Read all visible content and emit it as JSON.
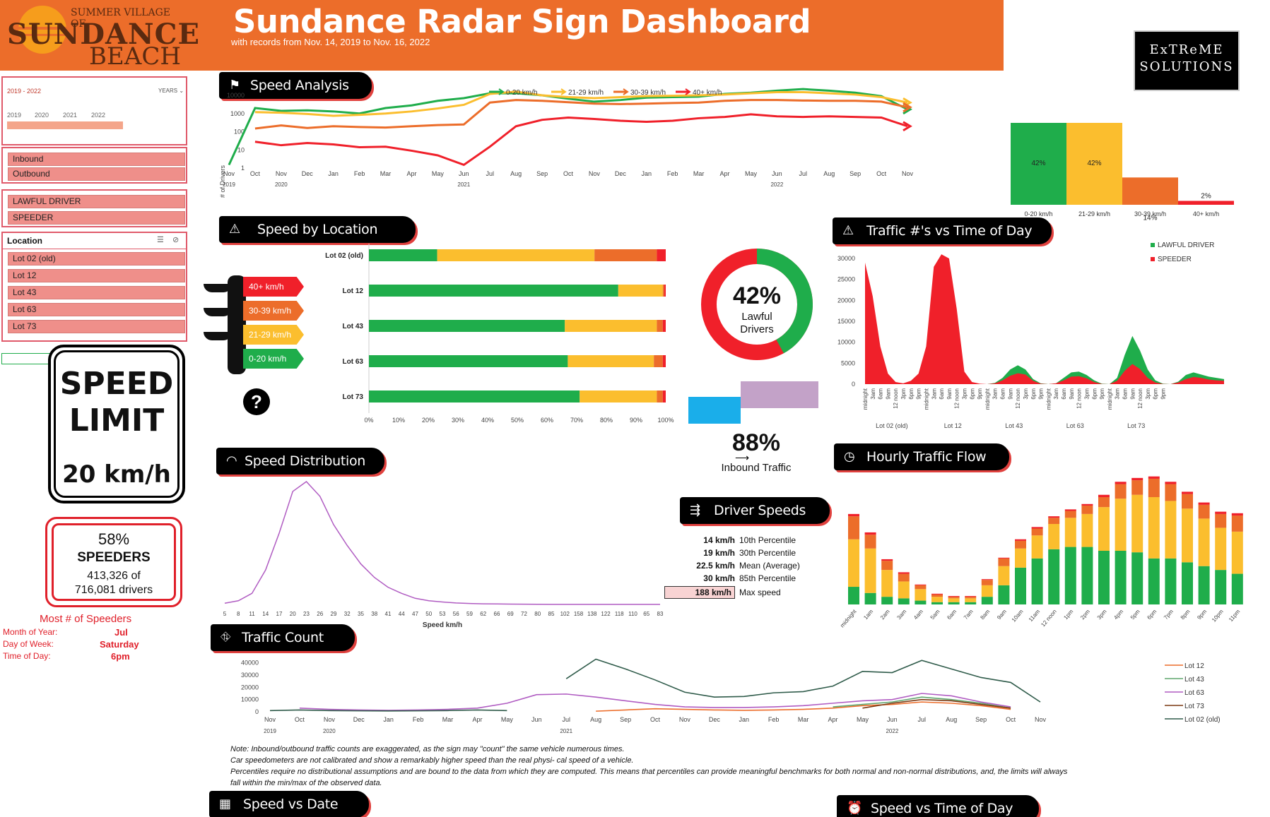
{
  "header": {
    "logo_top": "SUMMER VILLAGE OF",
    "logo_main": "SUNDANCE",
    "logo_sub": "BEACH",
    "title": "Sundance Radar Sign Dashboard",
    "subtitle": "with records from Nov. 14, 2019 to Nov. 16, 2022",
    "brand_line1": "ExTReME",
    "brand_line2": "SOLUTIONS",
    "brand_bg": "#000000"
  },
  "colors": {
    "green": "#1fad4b",
    "yellow": "#fbbe2e",
    "orange": "#ec6d2a",
    "red": "#f0202a",
    "purple": "#b05cc2",
    "accent": "#e0413e"
  },
  "timeline": {
    "range_label": "2019 - 2022",
    "unit_label": "YEARS",
    "years": [
      "2019",
      "2020",
      "2021",
      "2022"
    ]
  },
  "slicer_direction": {
    "items": [
      "Inbound",
      "Outbound"
    ]
  },
  "slicer_driver": {
    "items": [
      "LAWFUL DRIVER",
      "SPEEDER"
    ]
  },
  "slicer_location": {
    "title": "Location",
    "items": [
      "Lot 02 (old)",
      "Lot 12",
      "Lot 43",
      "Lot 63",
      "Lot 73"
    ]
  },
  "speed_sign": {
    "line1": "SPEED",
    "line2": "LIMIT",
    "line3": "20 km/h"
  },
  "speeders_card": {
    "pct": "58%",
    "label": "SPEEDERS",
    "count": "413,326 of",
    "total": "716,081 drivers"
  },
  "most_speeders": {
    "title": "Most # of Speeders",
    "rows": [
      {
        "k": "Month of Year:",
        "v": "Jul"
      },
      {
        "k": "Day of Week:",
        "v": "Saturday"
      },
      {
        "k": "Time of Day:",
        "v": "6pm"
      }
    ]
  },
  "sections": {
    "speed_analysis": "Speed Analysis",
    "speed_by_location": "Speed by Location",
    "traffic_vs_time": "Traffic #'s vs Time of Day",
    "speed_distribution": "Speed Distribution",
    "hourly_traffic": "Hourly Traffic Flow",
    "driver_speeds": "Driver Speeds",
    "traffic_count": "Traffic Count",
    "speed_vs_date": "Speed vs Date",
    "speed_vs_time": "Speed vs Time of Day"
  },
  "traffic_light": {
    "labels": [
      "40+ km/h",
      "30-39 km/h",
      "21-29 km/h",
      "0-20 km/h"
    ],
    "help": "?"
  },
  "lawful_donut": {
    "pct": "42%",
    "label1": "Lawful",
    "label2": "Drivers",
    "value": 42
  },
  "inbound": {
    "pct": "88%",
    "label": "Inbound Traffic",
    "inbound_share": 88
  },
  "driver_speeds": {
    "rows": [
      {
        "v": "14 km/h",
        "k": "10th Percentile"
      },
      {
        "v": "19 km/h",
        "k": "30th Percentile"
      },
      {
        "v": "22.5 km/h",
        "k": "Mean (Average)"
      },
      {
        "v": "30 km/h",
        "k": "85th Percentile"
      },
      {
        "v": "188 km/h",
        "k": "Max speed"
      }
    ]
  },
  "notes": [
    "Note: Inbound/outbound traffic counts are exaggerated, as the sign may \"count\" the same vehicle numerous times.",
    "Car speedometers are not calibrated and show a remarkably higher speed than the real physi- cal speed of a vehicle.",
    "Percentiles require no distributional assumptions and are bound to the data from which they are computed. This means that percentiles can provide meaningful benchmarks for both normal and non-normal distributions, and, the limits will always",
    "fall within the min/max of the observed data."
  ],
  "chart_data": [
    {
      "id": "speed_analysis",
      "type": "line",
      "ylabel": "# of Drivers",
      "yscale": "log",
      "yticks": [
        "10000",
        "1000",
        "100",
        "10",
        "1"
      ],
      "x": [
        "Nov",
        "Oct",
        "Nov",
        "Dec",
        "Jan",
        "Feb",
        "Mar",
        "Apr",
        "May",
        "Jun",
        "Jul",
        "Aug",
        "Sep",
        "Oct",
        "Nov",
        "Dec",
        "Jan",
        "Feb",
        "Mar",
        "Apr",
        "May",
        "Jun",
        "Jul",
        "Aug",
        "Sep",
        "Oct",
        "Nov"
      ],
      "year_labels": [
        {
          "i": 0,
          "t": "2019"
        },
        {
          "i": 2,
          "t": "2020"
        },
        {
          "i": 9,
          "t": "2021"
        },
        {
          "i": 21,
          "t": "2022"
        }
      ],
      "legend_position": "top",
      "series": [
        {
          "name": "0-20 km/h",
          "color": "#1fad4b",
          "values": [
            1.5,
            2000,
            1400,
            1500,
            1300,
            1000,
            2000,
            2800,
            5000,
            7000,
            13000,
            13000,
            10000,
            6500,
            4500,
            5500,
            7500,
            8000,
            8500,
            12000,
            14000,
            18000,
            22000,
            18000,
            14000,
            9000,
            1700
          ]
        },
        {
          "name": "21-29 km/h",
          "color": "#fbbe2e",
          "values": [
            null,
            1200,
            1100,
            950,
            750,
            850,
            1000,
            1300,
            1900,
            3000,
            12000,
            16000,
            10000,
            8000,
            7000,
            8000,
            9000,
            9500,
            10000,
            11000,
            13000,
            15000,
            15000,
            13000,
            11000,
            8000,
            4000
          ]
        },
        {
          "name": "30-39 km/h",
          "color": "#ec6d2a",
          "values": [
            null,
            150,
            220,
            160,
            200,
            180,
            170,
            200,
            230,
            250,
            4000,
            5500,
            5000,
            4200,
            3500,
            3300,
            3500,
            3800,
            4000,
            5000,
            5500,
            5500,
            5200,
            5000,
            5000,
            4500,
            2200
          ]
        },
        {
          "name": "40+ km/h",
          "color": "#f0202a",
          "values": [
            null,
            28,
            18,
            24,
            20,
            14,
            15,
            9,
            5,
            1.5,
            15,
            200,
            450,
            600,
            500,
            400,
            350,
            400,
            550,
            650,
            900,
            700,
            650,
            700,
            650,
            600,
            200
          ]
        }
      ]
    },
    {
      "id": "speed_bins_bar",
      "type": "bar",
      "categories": [
        "0-20 km/h",
        "21-29 km/h",
        "30-39 km/h",
        "40+ km/h"
      ],
      "values": [
        42,
        42,
        14,
        2
      ],
      "data_labels": [
        "42%",
        "42%",
        "14%",
        "2%"
      ]
    },
    {
      "id": "speed_by_location",
      "type": "bar",
      "orientation": "horizontal-stacked",
      "categories": [
        "Lot 02 (old)",
        "Lot 12",
        "Lot 43",
        "Lot 63",
        "Lot 73"
      ],
      "xticks": [
        "0%",
        "10%",
        "20%",
        "30%",
        "40%",
        "50%",
        "60%",
        "70%",
        "80%",
        "90%",
        "100%"
      ],
      "series": [
        {
          "name": "0-20 km/h",
          "color": "#1fad4b",
          "values": [
            23,
            84,
            66,
            67,
            71
          ]
        },
        {
          "name": "21-29 km/h",
          "color": "#fbbe2e",
          "values": [
            53,
            15,
            31,
            29,
            26
          ]
        },
        {
          "name": "30-39 km/h",
          "color": "#ec6d2a",
          "values": [
            21,
            0.5,
            2,
            3,
            2
          ]
        },
        {
          "name": "40+ km/h",
          "color": "#f0202a",
          "values": [
            3,
            0.5,
            1,
            1,
            1
          ]
        }
      ]
    },
    {
      "id": "traffic_vs_time",
      "type": "area",
      "yticks": [
        "30000",
        "25000",
        "20000",
        "15000",
        "10000",
        "5000",
        "0"
      ],
      "ymax": 30000,
      "hour_labels": [
        "midnight",
        "3am",
        "6am",
        "9am",
        "12 noon",
        "3pm",
        "6pm",
        "9pm"
      ],
      "lots": [
        "Lot 02 (old)",
        "Lot 12",
        "Lot 43",
        "Lot 63",
        "Lot 73"
      ],
      "legend": [
        {
          "name": "LAWFUL DRIVER",
          "color": "#1fad4b"
        },
        {
          "name": "SPEEDER",
          "color": "#f0202a"
        }
      ],
      "legend_position": "top-right",
      "series": [
        {
          "name": "LAWFUL DRIVER",
          "values": [
            0,
            0,
            0,
            0,
            0,
            0,
            0,
            0,
            0,
            0,
            0,
            0,
            0,
            0,
            0,
            0,
            0,
            300,
            1500,
            3500,
            4500,
            3500,
            1200,
            200,
            0,
            200,
            1500,
            2800,
            3000,
            2200,
            900,
            100,
            0,
            1500,
            7000,
            11500,
            8000,
            3500,
            900,
            100,
            0,
            600,
            2200,
            2800,
            2300,
            1800,
            1500,
            1200
          ]
        },
        {
          "name": "SPEEDER",
          "values": [
            29000,
            21000,
            9000,
            2500,
            500,
            200,
            800,
            2500,
            9000,
            28000,
            31000,
            30000,
            18000,
            3000,
            500,
            100,
            0,
            200,
            900,
            2000,
            2600,
            2300,
            800,
            100,
            0,
            200,
            900,
            1800,
            1900,
            1400,
            500,
            50,
            0,
            800,
            3200,
            4800,
            3600,
            1500,
            400,
            50,
            0,
            400,
            1200,
            1700,
            1500,
            1100,
            900,
            800
          ]
        }
      ]
    },
    {
      "id": "speed_distribution",
      "type": "line",
      "xlabel": "Speed km/h",
      "x": [
        "5",
        "8",
        "11",
        "14",
        "17",
        "20",
        "23",
        "26",
        "29",
        "32",
        "35",
        "38",
        "41",
        "44",
        "47",
        "50",
        "53",
        "56",
        "59",
        "62",
        "66",
        "69",
        "72",
        "80",
        "85",
        "102",
        "158",
        "138",
        "122",
        "118",
        "110",
        "65",
        "83"
      ],
      "series": [
        {
          "name": "",
          "color": "#b05cc2",
          "values": [
            1,
            3,
            9,
            28,
            58,
            92,
            100,
            88,
            65,
            48,
            33,
            22,
            14,
            9,
            5,
            3,
            2,
            1.2,
            0.8,
            0.5,
            0.4,
            0.3,
            0.2,
            0.15,
            0.1,
            0.1,
            0.1,
            0.1,
            0.1,
            0.1,
            0.1,
            0.1,
            0.1
          ]
        }
      ]
    },
    {
      "id": "hourly_traffic",
      "type": "bar",
      "orientation": "vertical-stacked",
      "categories": [
        "midnight",
        "1am",
        "2am",
        "3am",
        "4am",
        "5am",
        "6am",
        "7am",
        "8am",
        "9am",
        "10am",
        "11am",
        "12 noon",
        "1pm",
        "2pm",
        "3pm",
        "4pm",
        "5pm",
        "6pm",
        "7pm",
        "8pm",
        "9pm",
        "10pm",
        "11pm"
      ],
      "series": [
        {
          "name": "0-20 km/h",
          "color": "#1fad4b",
          "values": [
            23,
            15,
            10,
            8,
            5,
            3,
            3,
            3,
            10,
            25,
            48,
            60,
            72,
            75,
            75,
            70,
            70,
            68,
            60,
            60,
            55,
            50,
            45,
            40
          ]
        },
        {
          "name": "21-29 km/h",
          "color": "#fbbe2e",
          "values": [
            62,
            58,
            35,
            22,
            15,
            7,
            5,
            5,
            15,
            25,
            25,
            30,
            33,
            38,
            43,
            57,
            68,
            75,
            80,
            75,
            70,
            62,
            55,
            55
          ]
        },
        {
          "name": "30-39 km/h",
          "color": "#ec6d2a",
          "values": [
            30,
            18,
            12,
            10,
            5,
            3,
            2,
            2,
            7,
            10,
            10,
            9,
            8,
            9,
            11,
            13,
            19,
            19,
            24,
            22,
            19,
            18,
            18,
            21
          ]
        },
        {
          "name": "40+ km/h",
          "color": "#f0202a",
          "values": [
            3,
            3,
            2,
            2,
            1,
            1,
            1,
            1,
            1,
            1,
            2,
            2,
            2,
            2,
            2,
            3,
            3,
            3,
            3,
            3,
            3,
            3,
            3,
            3
          ]
        }
      ]
    },
    {
      "id": "traffic_count",
      "type": "line",
      "yticks": [
        "40000",
        "30000",
        "20000",
        "10000",
        "0"
      ],
      "ymax": 45000,
      "x": [
        "Nov",
        "Oct",
        "Nov",
        "Dec",
        "Jan",
        "Feb",
        "Mar",
        "Apr",
        "May",
        "Jun",
        "Jul",
        "Aug",
        "Sep",
        "Oct",
        "Nov",
        "Dec",
        "Jan",
        "Feb",
        "Mar",
        "Apr",
        "May",
        "Jun",
        "Jul",
        "Aug",
        "Sep",
        "Oct",
        "Nov"
      ],
      "year_labels": [
        {
          "i": 0,
          "t": "2019"
        },
        {
          "i": 2,
          "t": "2020"
        },
        {
          "i": 10,
          "t": "2021"
        },
        {
          "i": 21,
          "t": "2022"
        }
      ],
      "legend_position": "right",
      "series": [
        {
          "name": "Lot 12",
          "color": "#ec6d2a",
          "values": [
            null,
            null,
            null,
            null,
            null,
            null,
            null,
            null,
            null,
            null,
            null,
            500,
            1500,
            2500,
            2000,
            1500,
            1200,
            1500,
            2000,
            3000,
            5000,
            6000,
            8000,
            7000,
            5000,
            2000,
            null
          ]
        },
        {
          "name": "Lot 43",
          "color": "#5fa56d",
          "values": [
            null,
            null,
            null,
            null,
            null,
            null,
            null,
            null,
            null,
            null,
            null,
            null,
            null,
            null,
            null,
            null,
            null,
            null,
            null,
            4000,
            6000,
            8000,
            12000,
            10000,
            7000,
            3000,
            null
          ]
        },
        {
          "name": "Lot 63",
          "color": "#b05cc2",
          "values": [
            null,
            3000,
            2000,
            1500,
            1200,
            1500,
            2000,
            3000,
            7000,
            14000,
            14500,
            12000,
            9000,
            6000,
            4000,
            3500,
            3500,
            4000,
            5000,
            7000,
            9000,
            10000,
            15000,
            13000,
            8000,
            4000,
            null
          ]
        },
        {
          "name": "Lot 73",
          "color": "#7b3a14",
          "values": [
            null,
            null,
            null,
            null,
            null,
            null,
            null,
            null,
            null,
            null,
            null,
            null,
            null,
            null,
            null,
            null,
            null,
            null,
            null,
            null,
            3000,
            7000,
            10000,
            9000,
            6000,
            3000,
            null
          ]
        },
        {
          "name": "Lot 02 (old)",
          "color": "#2f5b4a",
          "values": [
            1000,
            1500,
            1000,
            800,
            700,
            800,
            1000,
            1500,
            1000,
            null,
            27000,
            43000,
            35000,
            26000,
            16000,
            12000,
            12500,
            15500,
            16500,
            21000,
            33000,
            32000,
            42000,
            35000,
            28000,
            24000,
            8000
          ]
        }
      ]
    }
  ]
}
